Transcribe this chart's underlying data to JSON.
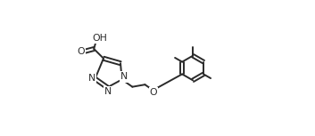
{
  "background_color": "#ffffff",
  "line_color": "#2a2a2a",
  "text_color": "#2a2a2a",
  "line_width": 1.4,
  "font_size": 7.8,
  "figsize": [
    3.53,
    1.53
  ],
  "dpi": 100,
  "xlim": [
    0.0,
    1.0
  ],
  "ylim": [
    0.05,
    0.95
  ]
}
